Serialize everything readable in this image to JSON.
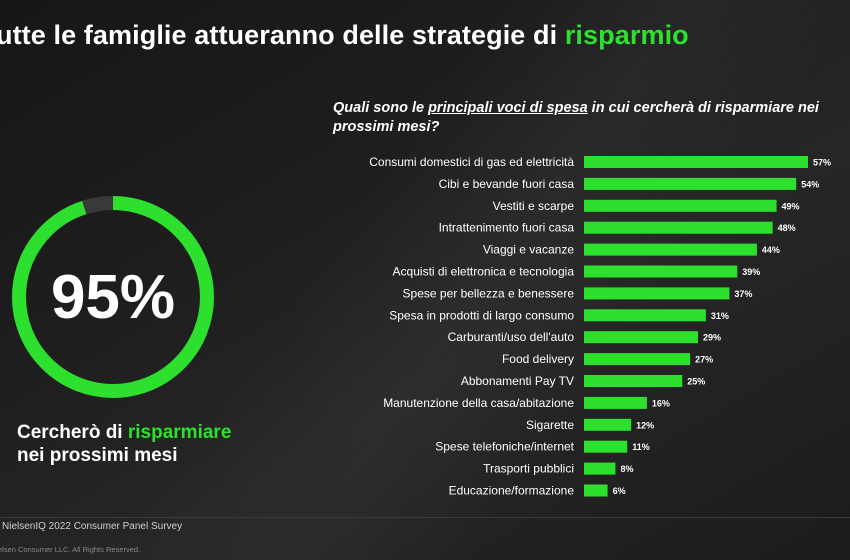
{
  "header": {
    "title_main": "utte le famiglie attueranno delle strategie di ",
    "title_accent": "risparmio"
  },
  "question": {
    "part1": "Quali sono le ",
    "underlined": "principali voci di spesa",
    "part2": " in cui cercherà di risparmiare nei prossimi mesi?"
  },
  "kpi": {
    "value": 95,
    "label": "95%",
    "caption_prefix": "Cercherò di ",
    "caption_accent": "risparmiare",
    "caption_suffix": "nei prossimi mesi"
  },
  "colors": {
    "accent": "#2ee02e",
    "ring_track": "#3a3a3a",
    "text": "#ffffff"
  },
  "footer": {
    "source": "NielsenIQ 2022 Consumer Panel Survey",
    "copyright": "elsen Consumer LLC. All Rights Reserved."
  },
  "chart_data": {
    "type": "bar",
    "orientation": "horizontal",
    "title": "Quali sono le principali voci di spesa in cui cercherà di risparmiare nei prossimi mesi?",
    "xlabel": "",
    "ylabel": "",
    "xlim": [
      0,
      57
    ],
    "unit": "%",
    "categories": [
      "Consumi domestici di gas ed elettricità",
      "Cibi e bevande fuori casa",
      "Vestiti e scarpe",
      "Intrattenimento fuori casa",
      "Viaggi e vacanze",
      "Acquisti di elettronica e tecnologia",
      "Spese per bellezza e benessere",
      "Spesa in prodotti di largo consumo",
      "Carburanti/uso dell'auto",
      "Food delivery",
      "Abbonamenti Pay TV",
      "Manutenzione della casa/abitazione",
      "Sigarette",
      "Spese telefoniche/internet",
      "Trasporti pubblici",
      "Educazione/formazione"
    ],
    "values": [
      57,
      54,
      49,
      48,
      44,
      39,
      37,
      31,
      29,
      27,
      25,
      16,
      12,
      11,
      8,
      6
    ],
    "labels": [
      "57%",
      "54%",
      "49%",
      "48%",
      "44%",
      "39%",
      "37%",
      "31%",
      "29%",
      "27%",
      "25%",
      "16%",
      "12%",
      "11%",
      "8%",
      "6%"
    ],
    "grid": false,
    "legend": "none"
  }
}
